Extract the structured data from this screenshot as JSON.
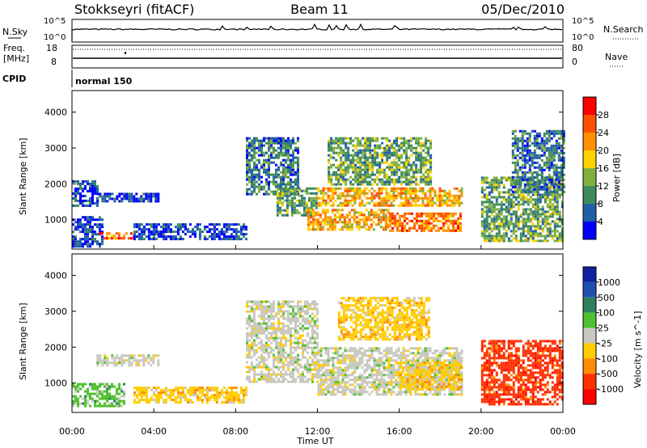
{
  "header": {
    "station": "Stokkseyri (fitACF)",
    "beam": "Beam 11",
    "date": "05/Dec/2010"
  },
  "strip_panels": {
    "nsky_label": "N.Sky",
    "nsearch_label": "N.Search",
    "nsky_ticks": [
      "10^5",
      "10^0"
    ],
    "nsearch_ticks": [
      "10^5",
      "10^0"
    ],
    "freq_label": "Freq.",
    "freq_unit": "[MHz]",
    "freq_ticks": [
      "18",
      "8"
    ],
    "nave_label": "Nave",
    "nave_ticks": [
      "80",
      "0"
    ],
    "cpid_label": "CPID",
    "cpid_value": "normal 150"
  },
  "colors": {
    "power_scale": [
      "#0000ff",
      "#1f5fa8",
      "#3f8a5a",
      "#7fb040",
      "#ffd000",
      "#ff9000",
      "#ff5000",
      "#ff0000"
    ],
    "velocity_scale": [
      "#1020a0",
      "#2050b0",
      "#2f7f5f",
      "#50c030",
      "#c8c8c0",
      "#ffcc00",
      "#ff8c00",
      "#ff3000",
      "#ff0000"
    ]
  },
  "chart_data": [
    {
      "type": "heatmap",
      "panel": "power",
      "ylabel": "Slant Range [km]",
      "ylim": [
        180,
        4600
      ],
      "yticks": [
        1000,
        2000,
        3000,
        4000
      ],
      "xlabel": "",
      "x_range_hours": [
        0,
        24
      ],
      "colorbar": {
        "label": "Power [dB]",
        "range": [
          0,
          32
        ],
        "ticks": [
          4,
          8,
          12,
          16,
          20,
          24,
          28
        ]
      },
      "features": [
        {
          "start": 0.0,
          "end": 1.5,
          "range_min": 250,
          "range_max": 1100,
          "level": 8
        },
        {
          "start": 0.0,
          "end": 1.2,
          "range_min": 1400,
          "range_max": 2100,
          "level": 8
        },
        {
          "start": 1.3,
          "end": 3.0,
          "range_min": 450,
          "range_max": 650,
          "level": 28
        },
        {
          "start": 1.2,
          "end": 4.2,
          "range_min": 1500,
          "range_max": 1750,
          "level": 8
        },
        {
          "start": 3.0,
          "end": 8.5,
          "range_min": 450,
          "range_max": 900,
          "level": 8
        },
        {
          "start": 8.5,
          "end": 11.0,
          "range_min": 1700,
          "range_max": 3300,
          "level": 12
        },
        {
          "start": 10.0,
          "end": 12.0,
          "range_min": 1100,
          "range_max": 1900,
          "level": 16
        },
        {
          "start": 12.0,
          "end": 19.0,
          "range_min": 1400,
          "range_max": 1900,
          "level": 22
        },
        {
          "start": 12.5,
          "end": 17.5,
          "range_min": 2000,
          "range_max": 3300,
          "level": 16
        },
        {
          "start": 11.5,
          "end": 15.5,
          "range_min": 700,
          "range_max": 1300,
          "level": 24
        },
        {
          "start": 15.5,
          "end": 19.0,
          "range_min": 700,
          "range_max": 1200,
          "level": 28
        },
        {
          "start": 20.0,
          "end": 24.0,
          "range_min": 400,
          "range_max": 2200,
          "level": 16
        },
        {
          "start": 21.5,
          "end": 24.0,
          "range_min": 1800,
          "range_max": 3500,
          "level": 12
        }
      ]
    },
    {
      "type": "heatmap",
      "panel": "velocity",
      "ylabel": "Slant Range [km]",
      "ylim": [
        180,
        4600
      ],
      "yticks": [
        1000,
        2000,
        3000,
        4000
      ],
      "xlabel": "Time UT",
      "x_range_hours": [
        0,
        24
      ],
      "xticks": [
        "00:00",
        "04:00",
        "08:00",
        "12:00",
        "16:00",
        "20:00",
        "00:00"
      ],
      "colorbar": {
        "label": "Velocity [m s^-1]",
        "ticks": [
          "1000",
          "500",
          "100",
          "25",
          "-25",
          "-100",
          "-500",
          "-1000"
        ]
      },
      "features": [
        {
          "start": 0.0,
          "end": 2.5,
          "range_min": 350,
          "range_max": 1000,
          "level": 100
        },
        {
          "start": 1.2,
          "end": 4.2,
          "range_min": 1500,
          "range_max": 1800,
          "level": 0
        },
        {
          "start": 3.0,
          "end": 8.5,
          "range_min": 450,
          "range_max": 900,
          "level": -100
        },
        {
          "start": 8.5,
          "end": 12.0,
          "range_min": 1000,
          "range_max": 3300,
          "level": 0
        },
        {
          "start": 12.0,
          "end": 19.0,
          "range_min": 700,
          "range_max": 2000,
          "level": 0
        },
        {
          "start": 13.0,
          "end": 17.5,
          "range_min": 2200,
          "range_max": 3400,
          "level": -100
        },
        {
          "start": 16.0,
          "end": 19.0,
          "range_min": 800,
          "range_max": 1600,
          "level": -100
        },
        {
          "start": 20.0,
          "end": 24.0,
          "range_min": 400,
          "range_max": 2200,
          "level": -500
        }
      ]
    }
  ]
}
